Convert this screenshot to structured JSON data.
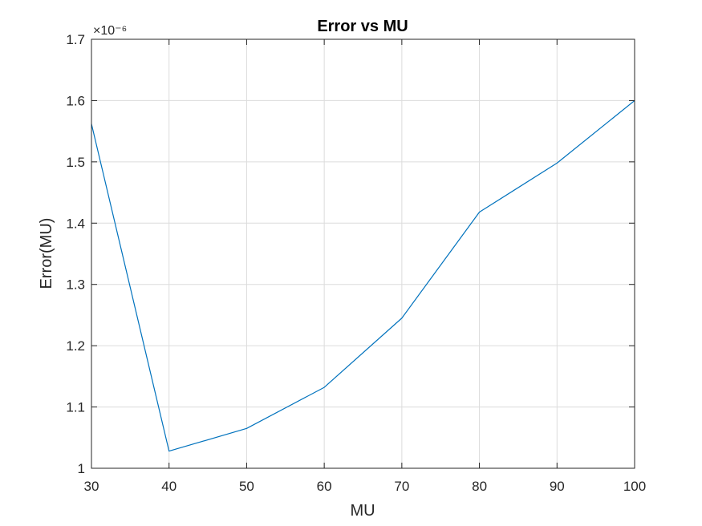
{
  "chart_data": {
    "type": "line",
    "title": "Error vs MU",
    "xlabel": "MU",
    "ylabel": "Error(MU)",
    "y_exponent_label": "×10⁻⁶",
    "xlim": [
      30,
      100
    ],
    "ylim": [
      1.0,
      1.7
    ],
    "x_ticks": [
      30,
      40,
      50,
      60,
      70,
      80,
      90,
      100
    ],
    "y_ticks": [
      1,
      1.1,
      1.2,
      1.3,
      1.4,
      1.5,
      1.6,
      1.7
    ],
    "y_tick_labels": [
      "1",
      "1.1",
      "1.2",
      "1.3",
      "1.4",
      "1.5",
      "1.6",
      "1.7"
    ],
    "grid": true,
    "series": [
      {
        "color": "#0072BD",
        "x": [
          30,
          40,
          50,
          60,
          70,
          80,
          90,
          100
        ],
        "y": [
          1.562,
          1.028,
          1.065,
          1.132,
          1.245,
          1.418,
          1.498,
          1.6
        ]
      }
    ]
  }
}
